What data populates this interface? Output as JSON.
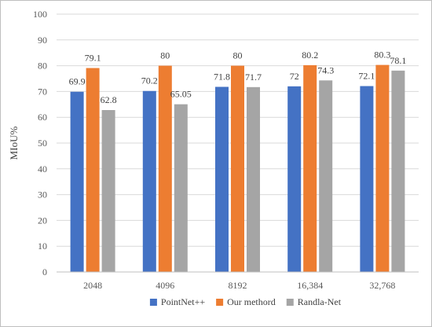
{
  "chart_data": {
    "type": "bar",
    "title": "",
    "xlabel": "",
    "ylabel": "MIoU%",
    "ylim": [
      0,
      100
    ],
    "ytick_step": 10,
    "grid": true,
    "legend_position": "bottom",
    "categories": [
      "2048",
      "4096",
      "8192",
      "16,384",
      "32,768"
    ],
    "series": [
      {
        "name": "PointNet++",
        "color": "#4472c4",
        "values": [
          69.9,
          70.2,
          71.8,
          72,
          72.1
        ],
        "labels": [
          "69.9",
          "70.2",
          "71.8",
          "72",
          "72.1"
        ]
      },
      {
        "name": "Our methord",
        "color": "#ed7d31",
        "values": [
          79.1,
          80,
          80,
          80.2,
          80.3
        ],
        "labels": [
          "79.1",
          "80",
          "80",
          "80.2",
          "80.3"
        ]
      },
      {
        "name": "Randla-Net",
        "color": "#a5a5a5",
        "values": [
          62.8,
          65.05,
          71.7,
          74.3,
          78.1
        ],
        "labels": [
          "62.8",
          "65.05",
          "71.7",
          "74.3",
          "78.1"
        ]
      }
    ]
  }
}
